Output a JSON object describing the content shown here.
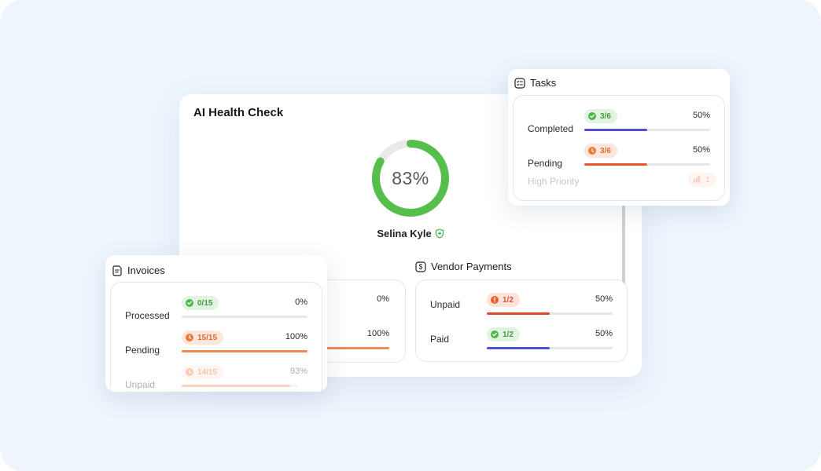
{
  "main": {
    "title": "AI Health Check",
    "score": {
      "label": "83%",
      "value": 0.83
    },
    "person_name": "Selina Kyle"
  },
  "invoices_partial": {
    "rows": [
      {
        "pct": "0%",
        "fill": 0.0,
        "color": "#e06a2c"
      },
      {
        "pct": "100%",
        "fill": 1.0,
        "color": "#ee8a56"
      }
    ]
  },
  "vendor_payments": {
    "title": "Vendor Payments",
    "rows": [
      {
        "label": "Unpaid",
        "badge": "1/2",
        "status": "warning",
        "pct": "50%",
        "fill": 0.5,
        "color": "#e0472a"
      },
      {
        "label": "Paid",
        "badge": "1/2",
        "status": "done",
        "pct": "50%",
        "fill": 0.5,
        "color": "#4f4fe0"
      }
    ]
  },
  "tasks": {
    "title": "Tasks",
    "rows": [
      {
        "label": "Completed",
        "badge": "3/6",
        "status": "done",
        "pct": "50%",
        "fill": 0.5,
        "color": "#4f4fe0"
      },
      {
        "label": "Pending",
        "badge": "3/6",
        "status": "pending",
        "pct": "50%",
        "fill": 0.5,
        "color": "#e8552f"
      }
    ],
    "high_priority": {
      "label": "High Priority",
      "count": "1"
    }
  },
  "invoices": {
    "title": "Invoices",
    "rows": [
      {
        "label": "Processed",
        "badge": "0/15",
        "status": "done",
        "pct": "0%",
        "fill": 0.0,
        "color": "#54b64f"
      },
      {
        "label": "Pending",
        "badge": "15/15",
        "status": "pending",
        "pct": "100%",
        "fill": 1.0,
        "color": "#ee8a56"
      },
      {
        "label": "Unpaid",
        "badge": "14/15",
        "status": "pending",
        "pct": "93%",
        "fill": 0.93,
        "color": "#ee8a56"
      }
    ]
  },
  "colors": {
    "background": "#eef5fd",
    "ring": "#56bf4c",
    "ring_track": "#e9e9ec",
    "green": "#54b64f",
    "orange": "#ea7a3e",
    "blue": "#4f4fe0"
  },
  "icons": {
    "shield": "shield-plus-icon",
    "tasks": "checklist-icon",
    "vendor": "dollar-icon",
    "invoices": "document-icon",
    "check": "check-icon",
    "clock": "clock-icon",
    "alert": "alert-icon",
    "priority": "bar-chart-icon"
  }
}
